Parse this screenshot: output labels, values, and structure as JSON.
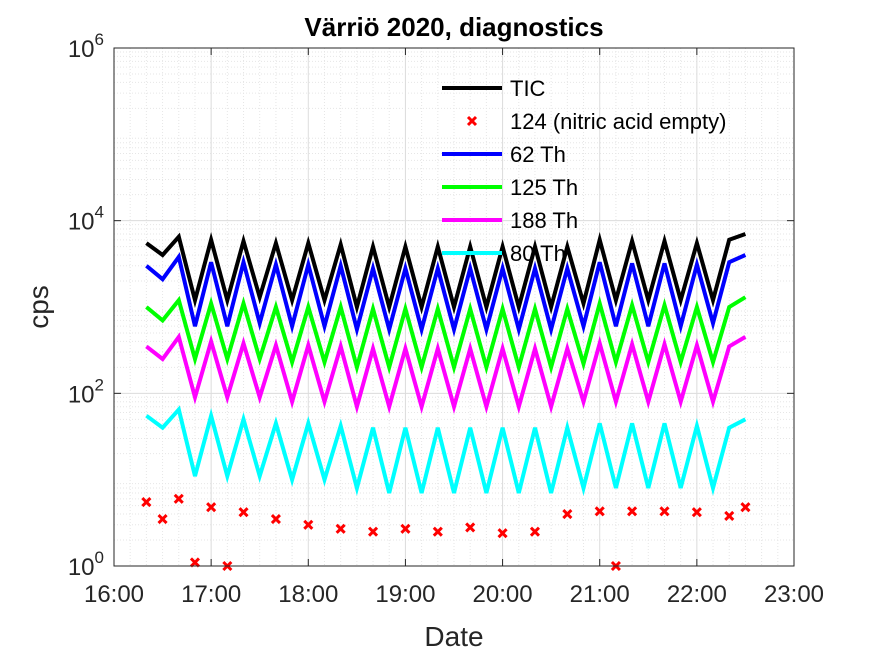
{
  "chart_data": {
    "type": "line",
    "title": "Värriö 2020, diagnostics",
    "xlabel": "Date",
    "ylabel": "cps",
    "yscale": "log",
    "ylim": [
      1,
      1000000
    ],
    "xlim": [
      "16:00",
      "23:00"
    ],
    "x_ticks": [
      "16:00",
      "17:00",
      "18:00",
      "19:00",
      "20:00",
      "21:00",
      "22:00",
      "23:00"
    ],
    "y_ticks": [
      {
        "base": "10",
        "exp": "0",
        "value": 1
      },
      {
        "base": "10",
        "exp": "2",
        "value": 100
      },
      {
        "base": "10",
        "exp": "4",
        "value": 10000
      },
      {
        "base": "10",
        "exp": "6",
        "value": 1000000
      }
    ],
    "grid": true,
    "minor_grid": true,
    "legend_position": "top-right",
    "x": [
      "16:20",
      "16:30",
      "16:40",
      "16:50",
      "17:00",
      "17:10",
      "17:20",
      "17:30",
      "17:40",
      "17:50",
      "18:00",
      "18:10",
      "18:20",
      "18:30",
      "18:40",
      "18:50",
      "19:00",
      "19:10",
      "19:20",
      "19:30",
      "19:40",
      "19:50",
      "20:00",
      "20:10",
      "20:20",
      "20:30",
      "20:40",
      "20:50",
      "21:00",
      "21:10",
      "21:20",
      "21:30",
      "21:40",
      "21:50",
      "22:00",
      "22:10",
      "22:20",
      "22:30"
    ],
    "series": [
      {
        "name": "TIC",
        "color": "#000000",
        "style": "line",
        "values": [
          5500,
          4000,
          6500,
          1200,
          6000,
          1200,
          5800,
          1300,
          5500,
          1200,
          5500,
          1200,
          5300,
          1000,
          5000,
          1000,
          5000,
          1000,
          5000,
          1000,
          5000,
          1000,
          5000,
          1000,
          5000,
          1000,
          5000,
          1100,
          6000,
          1200,
          5800,
          1200,
          5800,
          1200,
          5500,
          1200,
          6000,
          7000
        ]
      },
      {
        "name": "124 (nitric acid empty)",
        "color": "#ff0000",
        "style": "marker",
        "marker": "x",
        "values": [
          5.5,
          3.5,
          6,
          1.1,
          4.8,
          1.0,
          4.2,
          null,
          3.5,
          null,
          3,
          null,
          2.7,
          null,
          2.5,
          null,
          2.7,
          null,
          2.5,
          null,
          2.8,
          null,
          2.4,
          null,
          2.5,
          null,
          4,
          null,
          4.3,
          1.0,
          4.3,
          null,
          4.3,
          null,
          4.2,
          null,
          3.8,
          4.8
        ]
      },
      {
        "name": "62 Th",
        "color": "#0000ff",
        "style": "line",
        "values": [
          3000,
          2100,
          3800,
          600,
          3300,
          600,
          3300,
          650,
          3100,
          600,
          3100,
          600,
          3000,
          550,
          2800,
          550,
          2800,
          550,
          2800,
          550,
          2800,
          550,
          2800,
          550,
          2800,
          550,
          2800,
          600,
          3300,
          600,
          3200,
          600,
          3200,
          600,
          3100,
          650,
          3300,
          4000
        ]
      },
      {
        "name": "125 Th",
        "color": "#00ff00",
        "style": "line",
        "values": [
          1000,
          700,
          1200,
          250,
          1100,
          250,
          1100,
          250,
          1000,
          230,
          1000,
          230,
          1000,
          200,
          950,
          200,
          950,
          200,
          950,
          200,
          950,
          200,
          950,
          200,
          950,
          200,
          950,
          220,
          1100,
          230,
          1050,
          230,
          1050,
          230,
          1000,
          230,
          1000,
          1300
        ]
      },
      {
        "name": "188 Th",
        "color": "#ff00ff",
        "style": "line",
        "values": [
          350,
          250,
          450,
          90,
          400,
          90,
          380,
          90,
          360,
          80,
          360,
          80,
          350,
          70,
          330,
          70,
          330,
          70,
          330,
          70,
          330,
          70,
          330,
          70,
          330,
          70,
          330,
          80,
          380,
          80,
          370,
          80,
          370,
          80,
          360,
          80,
          350,
          450
        ]
      },
      {
        "name": "80 Th",
        "color": "#00ffff",
        "style": "line",
        "values": [
          55,
          40,
          65,
          11,
          55,
          11,
          50,
          11,
          45,
          10,
          45,
          10,
          42,
          8,
          40,
          7,
          40,
          7,
          40,
          7,
          40,
          7,
          40,
          7,
          40,
          7,
          40,
          8,
          45,
          8,
          45,
          8,
          45,
          8,
          42,
          8,
          40,
          50
        ]
      }
    ]
  }
}
